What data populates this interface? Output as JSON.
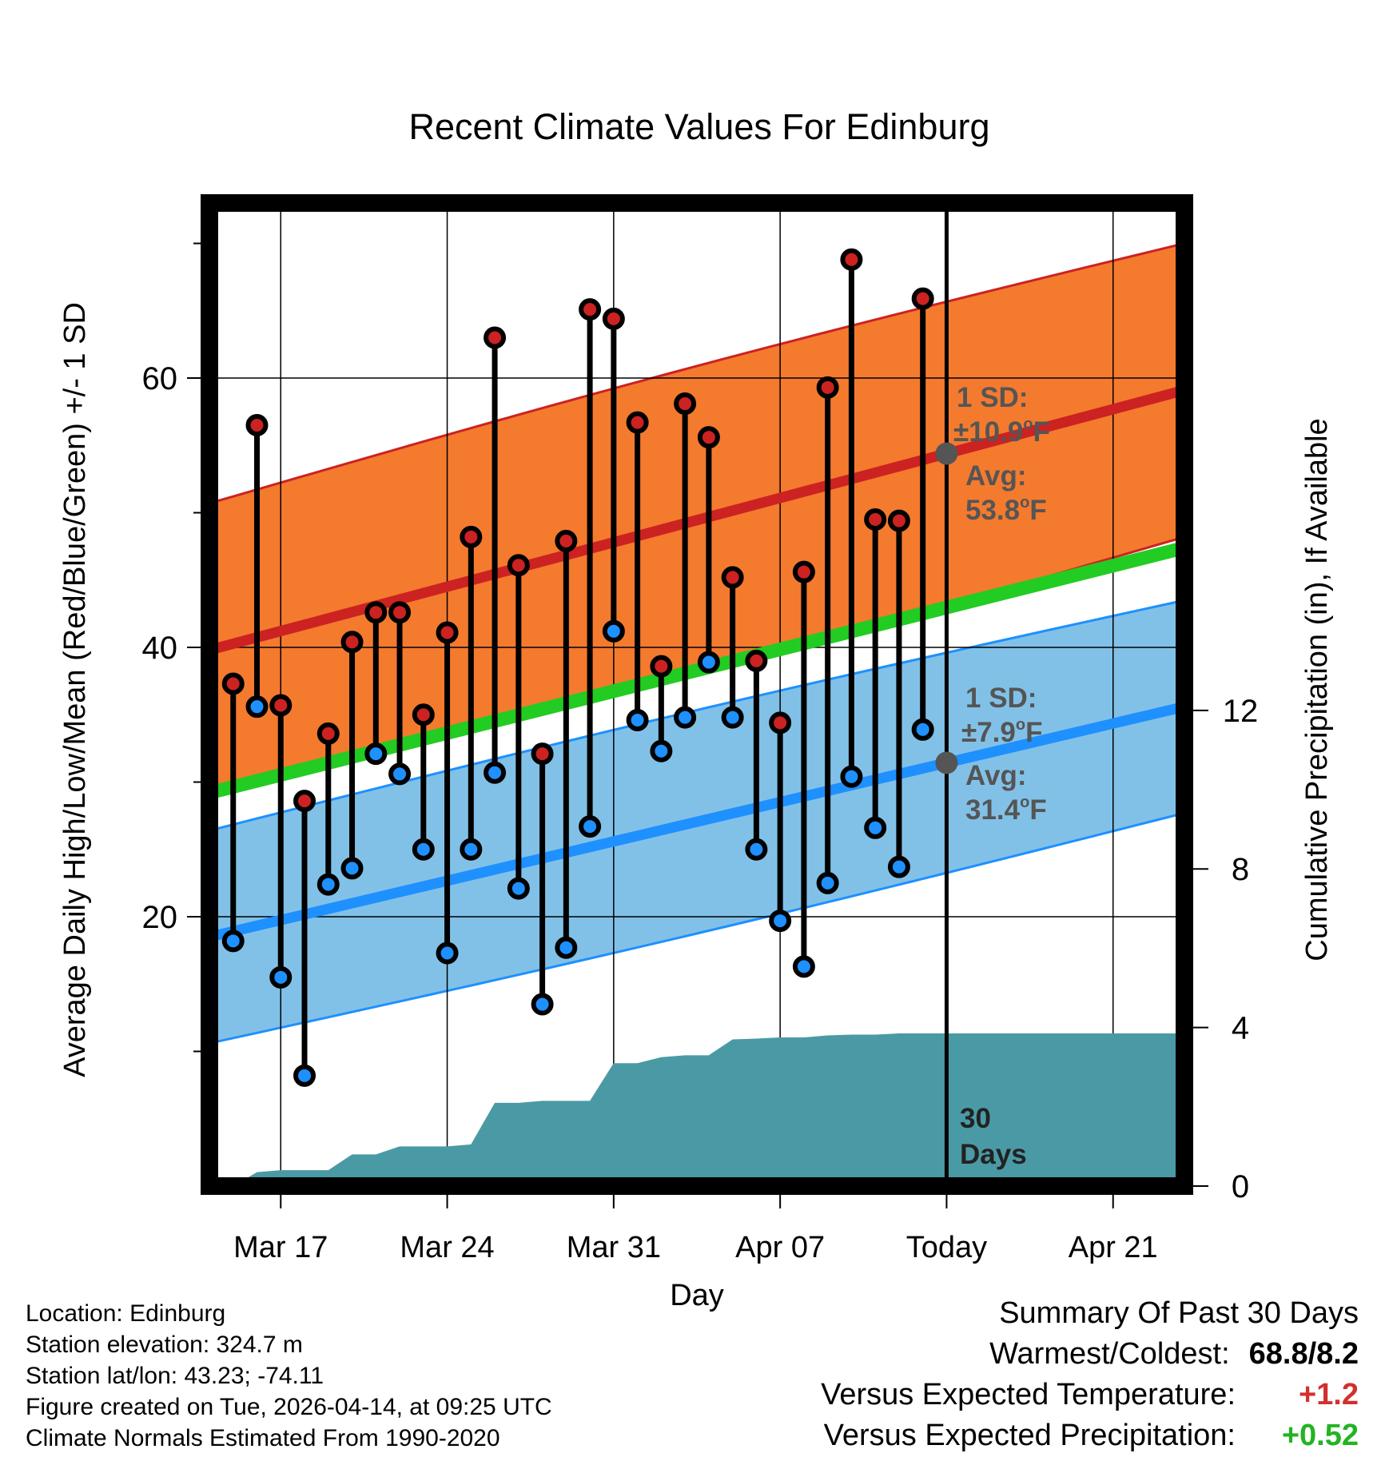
{
  "chart_data": {
    "type": "line",
    "title": "Recent Climate Values For Edinburg",
    "xlabel": "Day",
    "ylabel": "Average Daily High/Low/Mean (Red/Blue/Green) +/- 1 SD",
    "ylabel_right": "Cumulative Precipitation (in), If Available",
    "x_range_days": [
      -31,
      10
    ],
    "ylim": [
      0,
      73
    ],
    "ylim_right": [
      0,
      24.8
    ],
    "x_ticks": [
      {
        "day": -28,
        "label": "Mar 17"
      },
      {
        "day": -21,
        "label": "Mar 24"
      },
      {
        "day": -14,
        "label": "Mar 31"
      },
      {
        "day": -7,
        "label": "Apr 07"
      },
      {
        "day": 0,
        "label": "Today"
      },
      {
        "day": 7,
        "label": "Apr 21"
      }
    ],
    "y_ticks": [
      {
        "value": 60,
        "label": "60"
      },
      {
        "value": 40,
        "label": "40"
      },
      {
        "value": 20,
        "label": "20"
      }
    ],
    "y_minor_ticks": [
      10,
      30,
      50,
      70
    ],
    "y_ticks_right": [
      {
        "value": 0,
        "label": "0"
      },
      {
        "value": 4,
        "label": "4"
      },
      {
        "value": 8,
        "label": "8"
      },
      {
        "value": 12,
        "label": "12"
      }
    ],
    "series": [
      {
        "name": "Observed High",
        "color": "#cc2222",
        "values": [
          37.3,
          56.5,
          35.7,
          28.6,
          33.6,
          40.4,
          42.6,
          42.6,
          35.0,
          41.1,
          48.2,
          63.0,
          46.1,
          32.1,
          47.9,
          65.1,
          64.4,
          56.7,
          38.6,
          58.1,
          55.6,
          45.2,
          39.0,
          34.4,
          45.6,
          59.3,
          68.8,
          49.5,
          49.4,
          65.9
        ]
      },
      {
        "name": "Observed Low",
        "color": "#1e90ff",
        "values": [
          18.2,
          35.6,
          15.5,
          8.2,
          22.4,
          23.6,
          32.1,
          30.6,
          25.0,
          17.3,
          25.0,
          30.7,
          22.1,
          13.5,
          17.7,
          26.7,
          41.2,
          34.6,
          32.3,
          34.8,
          38.9,
          34.8,
          25.0,
          19.7,
          16.3,
          22.5,
          30.4,
          26.6,
          23.7,
          33.9
        ]
      },
      {
        "name": "Normal High",
        "color": "#d32f2f",
        "x": [
          -31,
          10
        ],
        "values": [
          39.8,
          59.1
        ]
      },
      {
        "name": "Normal Low",
        "color": "#1e90ff",
        "x": [
          -31,
          10
        ],
        "values": [
          18.5,
          35.6
        ]
      },
      {
        "name": "Normal Mean",
        "color": "#22cc22",
        "x": [
          -31,
          10
        ],
        "values": [
          29.2,
          47.4
        ]
      },
      {
        "name": "Cumulative Precipitation",
        "color": "#4a9aa5",
        "x": [
          -31,
          -30,
          -29,
          -28,
          -27,
          -26,
          -25,
          -24,
          -23,
          -22,
          -21,
          -20,
          -19,
          -18,
          -17,
          -16,
          -15,
          -14,
          -13,
          -12,
          -11,
          -10,
          -9,
          -8,
          -7,
          -6,
          -5,
          -4,
          -3,
          -2,
          -1,
          10
        ],
        "values": [
          0.0,
          0.0,
          0.35,
          0.4,
          0.4,
          0.4,
          0.8,
          0.8,
          1.0,
          1.0,
          1.0,
          1.05,
          2.1,
          2.1,
          2.15,
          2.15,
          2.15,
          3.1,
          3.1,
          3.25,
          3.3,
          3.3,
          3.7,
          3.72,
          3.75,
          3.75,
          3.8,
          3.82,
          3.82,
          3.85,
          3.85,
          3.85
        ]
      }
    ],
    "bands": [
      {
        "name": "High +/- 1 SD",
        "color": "#f47a2e",
        "sd": 10.9
      },
      {
        "name": "Low +/- 1 SD",
        "color": "#82c1e7",
        "sd": 7.9
      }
    ],
    "annotations": {
      "high_sd": "1 SD:",
      "high_sd_value": "±10.9",
      "high_avg": "Avg:",
      "high_avg_value": "53.8",
      "low_sd": "1 SD:",
      "low_sd_value": "±7.9",
      "low_avg": "Avg:",
      "low_avg_value": "31.4",
      "deg_unit": "o",
      "f_unit": "F",
      "days_number": "30",
      "days_word": "Days"
    }
  },
  "info": {
    "location": "Location: Edinburg",
    "elevation": "Station elevation: 324.7 m",
    "latlon": "Station lat/lon: 43.23; -74.11",
    "created": "Figure created on Tue, 2026-04-14, at 09:25 UTC",
    "normals": "Climate Normals Estimated From 1990-2020"
  },
  "summary": {
    "heading": "Summary Of Past 30 Days",
    "warm_cold_label": "Warmest/Coldest:",
    "warm_cold_value": "68.8/8.2",
    "temp_label": "Versus Expected Temperature:",
    "temp_value": "+1.2",
    "precip_label": "Versus Expected Precipitation:",
    "precip_value": "+0.52"
  },
  "colors": {
    "high": "#cc2222",
    "low": "#1e90ff",
    "mean": "#22cc22",
    "high_band": "#f47a2e",
    "low_band": "#82c1e7",
    "precip": "#4a9aa5",
    "annotation": "#555555"
  }
}
